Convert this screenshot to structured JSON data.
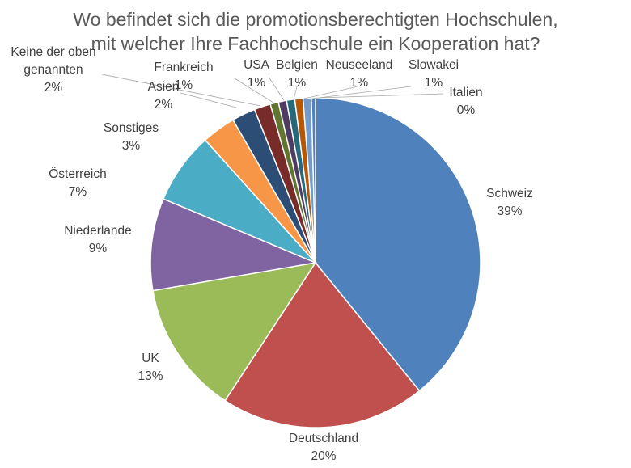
{
  "chart_data": {
    "type": "pie",
    "title_lines": [
      "Wo befindet sich die promotionsberechtigten Hochschulen,",
      "mit welcher Ihre Fachhochschule ein Kooperation hat?"
    ],
    "slices": [
      {
        "label": "Schweiz",
        "value_label": "39%",
        "value": 39.0,
        "color": "#4F81BD"
      },
      {
        "label": "Deutschland",
        "value_label": "20%",
        "value": 20.0,
        "color": "#C0504D"
      },
      {
        "label": "UK",
        "value_label": "13%",
        "value": 13.0,
        "color": "#9BBB59"
      },
      {
        "label": "Niederlande",
        "value_label": "9%",
        "value": 9.0,
        "color": "#8064A2"
      },
      {
        "label": "Österreich",
        "value_label": "7%",
        "value": 7.0,
        "color": "#4BACC6"
      },
      {
        "label": "Sonstiges",
        "value_label": "3%",
        "value": 3.3,
        "color": "#F79646"
      },
      {
        "label": "Asien",
        "value_label": "2%",
        "value": 2.3,
        "color": "#2C4D75"
      },
      {
        "label": "Keine der oben genannten",
        "label_lines": [
          "Keine der oben",
          "genannten"
        ],
        "value_label": "2%",
        "value": 1.6,
        "color": "#772C2A"
      },
      {
        "label": "Frankreich",
        "value_label": "1%",
        "value": 0.8,
        "color": "#5F7530"
      },
      {
        "label": "USA",
        "value_label": "1%",
        "value": 0.8,
        "color": "#4D3B62"
      },
      {
        "label": "Belgien",
        "value_label": "1%",
        "value": 0.8,
        "color": "#276A7C"
      },
      {
        "label": "Neuseeland",
        "value_label": "1%",
        "value": 0.8,
        "color": "#B65708"
      },
      {
        "label": "Slowakei",
        "value_label": "1%",
        "value": 0.8,
        "color": "#729ACA"
      },
      {
        "label": "Italien",
        "value_label": "0%",
        "value": 0.4,
        "color": "#4F81BD"
      }
    ]
  }
}
